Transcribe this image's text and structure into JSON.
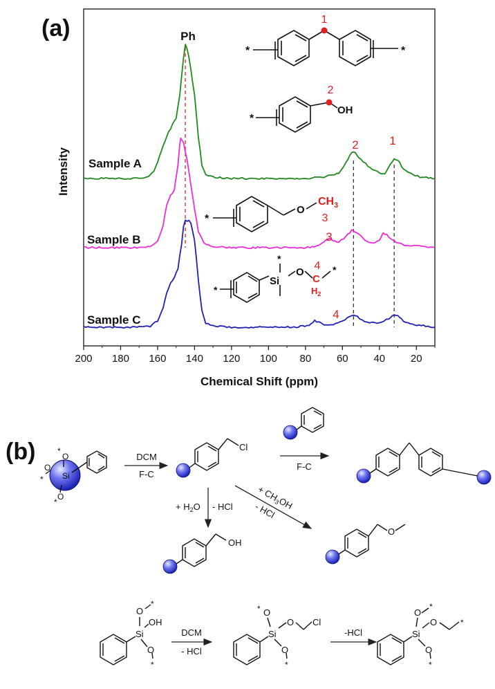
{
  "panel_a_label": "(a)",
  "panel_b_label": "(b)",
  "chart_data": {
    "type": "line",
    "xlabel": "Chemical Shift (ppm)",
    "ylabel": "Intensity",
    "xlim": [
      200,
      10
    ],
    "x_reversed": true,
    "xticks": [
      200,
      180,
      160,
      140,
      120,
      100,
      80,
      60,
      40,
      20
    ],
    "grid": false,
    "colors": {
      "A": "#1e8a1e",
      "B": "#ee2bd8",
      "C": "#1f1fb4"
    },
    "series": [
      {
        "name": "Sample A",
        "points": [
          [
            200,
            0
          ],
          [
            170,
            0
          ],
          [
            165,
            0.01
          ],
          [
            162,
            0.05
          ],
          [
            160,
            0.12
          ],
          [
            158,
            0.2
          ],
          [
            155,
            0.32
          ],
          [
            152,
            0.4
          ],
          [
            150,
            0.45
          ],
          [
            148,
            0.62
          ],
          [
            146,
            0.9
          ],
          [
            145,
            1.0
          ],
          [
            144,
            0.97
          ],
          [
            143,
            0.9
          ],
          [
            142,
            0.82
          ],
          [
            140,
            0.62
          ],
          [
            138,
            0.32
          ],
          [
            136,
            0.1
          ],
          [
            134,
            0.03
          ],
          [
            130,
            0.01
          ],
          [
            120,
            0
          ],
          [
            100,
            0
          ],
          [
            80,
            0
          ],
          [
            70,
            0.01
          ],
          [
            62,
            0.04
          ],
          [
            58,
            0.12
          ],
          [
            55,
            0.2
          ],
          [
            53,
            0.19
          ],
          [
            50,
            0.14
          ],
          [
            45,
            0.08
          ],
          [
            40,
            0.04
          ],
          [
            37,
            0.03
          ],
          [
            35,
            0.08
          ],
          [
            32,
            0.15
          ],
          [
            30,
            0.14
          ],
          [
            27,
            0.07
          ],
          [
            22,
            0.03
          ],
          [
            18,
            0.01
          ],
          [
            10,
            0
          ]
        ]
      },
      {
        "name": "Sample B",
        "points": [
          [
            200,
            0
          ],
          [
            170,
            0
          ],
          [
            164,
            0.01
          ],
          [
            160,
            0.06
          ],
          [
            157,
            0.2
          ],
          [
            155,
            0.4
          ],
          [
            153,
            0.48
          ],
          [
            151,
            0.52
          ],
          [
            149,
            0.75
          ],
          [
            148,
            0.94
          ],
          [
            147.5,
            1.0
          ],
          [
            146,
            0.96
          ],
          [
            144,
            0.8
          ],
          [
            142,
            0.58
          ],
          [
            140,
            0.35
          ],
          [
            138,
            0.15
          ],
          [
            135,
            0.04
          ],
          [
            130,
            0.01
          ],
          [
            120,
            0
          ],
          [
            100,
            0
          ],
          [
            80,
            0
          ],
          [
            74,
            0.01
          ],
          [
            70,
            0.05
          ],
          [
            67,
            0.09
          ],
          [
            65,
            0.06
          ],
          [
            62,
            0.05
          ],
          [
            58,
            0.1
          ],
          [
            55,
            0.16
          ],
          [
            52,
            0.14
          ],
          [
            48,
            0.07
          ],
          [
            44,
            0.04
          ],
          [
            40,
            0.07
          ],
          [
            38,
            0.13
          ],
          [
            36,
            0.12
          ],
          [
            33,
            0.07
          ],
          [
            30,
            0.04
          ],
          [
            25,
            0.02
          ],
          [
            15,
            0.01
          ],
          [
            10,
            0
          ]
        ]
      },
      {
        "name": "Sample C",
        "points": [
          [
            200,
            0
          ],
          [
            170,
            0
          ],
          [
            164,
            0.01
          ],
          [
            160,
            0.06
          ],
          [
            157,
            0.18
          ],
          [
            155,
            0.32
          ],
          [
            153,
            0.42
          ],
          [
            151,
            0.46
          ],
          [
            149,
            0.55
          ],
          [
            147,
            0.78
          ],
          [
            146,
            0.95
          ],
          [
            145,
            1.0
          ],
          [
            143,
            1.0
          ],
          [
            142,
            0.98
          ],
          [
            140,
            0.82
          ],
          [
            138,
            0.45
          ],
          [
            136,
            0.15
          ],
          [
            134,
            0.04
          ],
          [
            130,
            0.01
          ],
          [
            120,
            0
          ],
          [
            100,
            0
          ],
          [
            85,
            0
          ],
          [
            78,
            0.02
          ],
          [
            75,
            0.06
          ],
          [
            73,
            0.05
          ],
          [
            70,
            0.02
          ],
          [
            65,
            0.02
          ],
          [
            60,
            0.06
          ],
          [
            56,
            0.1
          ],
          [
            54,
            0.12
          ],
          [
            52,
            0.1
          ],
          [
            48,
            0.05
          ],
          [
            44,
            0.04
          ],
          [
            40,
            0.04
          ],
          [
            35,
            0.08
          ],
          [
            32,
            0.12
          ],
          [
            30,
            0.11
          ],
          [
            27,
            0.06
          ],
          [
            22,
            0.03
          ],
          [
            15,
            0.01
          ],
          [
            10,
            0
          ]
        ]
      }
    ],
    "reference_lines": [
      {
        "x": 145,
        "style": "dashed",
        "color": "#e02020"
      },
      {
        "x": 54,
        "style": "dashed",
        "color": "#333333"
      },
      {
        "x": 32,
        "style": "dashed",
        "color": "#333333"
      }
    ],
    "annotations": {
      "ph": "Ph",
      "n1": "1",
      "n2": "2",
      "n3": "3",
      "n4": "4",
      "star": "*",
      "oh": "OH",
      "o": "O",
      "si": "Si",
      "ch3_c": "CH",
      "ch3_sub": "3",
      "h2_h": "H",
      "h2_sub": "2",
      "c": "C"
    }
  },
  "scheme_b": {
    "dcm": "DCM",
    "fc": "F-C",
    "fc2": "F-C",
    "water_plus": "+ H",
    "water_sub": "2",
    "water_o": "O",
    "minus_hcl": "- HCl",
    "meoh_plus": "+ CH",
    "meoh_sub": "3",
    "meoh_oh": "OH",
    "minus_hcl2": "- HCl",
    "cl": "Cl",
    "oh": "OH",
    "o": "O",
    "si": "Si",
    "star": "*",
    "dcm2": "DCM",
    "minus_hcl3": "- HCl",
    "minus_hcl4": "-HCl"
  }
}
